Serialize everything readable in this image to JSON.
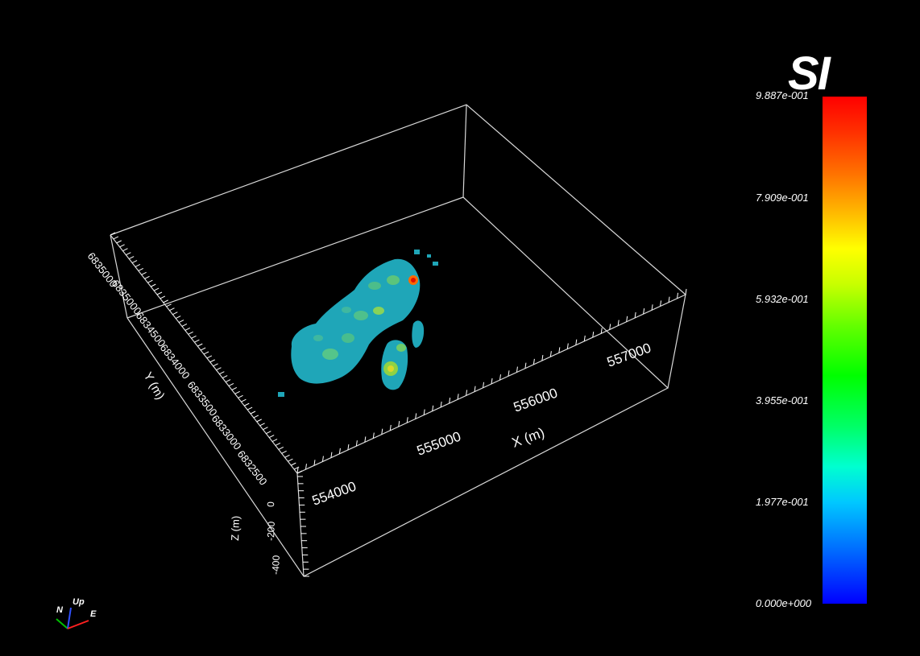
{
  "scene": {
    "x_axis": {
      "title": "X (m)",
      "ticks": [
        "554000",
        "555000",
        "556000",
        "557000"
      ]
    },
    "y_axis": {
      "title": "Y (m)",
      "ticks": [
        "6835000",
        "6835000",
        "6834500",
        "6834000",
        "6833500",
        "6833000",
        "6832500"
      ]
    },
    "z_axis": {
      "title": "Z (m)",
      "ticks": [
        "0",
        "-200",
        "-400"
      ]
    }
  },
  "colorbar": {
    "title": "SI",
    "labels": [
      "9.887e-001",
      "7.909e-001",
      "5.932e-001",
      "3.955e-001",
      "1.977e-001",
      "0.000e+000"
    ],
    "colors": {
      "min": "#0000ff",
      "low": "#00ffff",
      "mid": "#00ff00",
      "high": "#ffff00",
      "max": "#ff0000"
    }
  },
  "orientation": {
    "north": "N",
    "up": "Up",
    "east": "E"
  }
}
